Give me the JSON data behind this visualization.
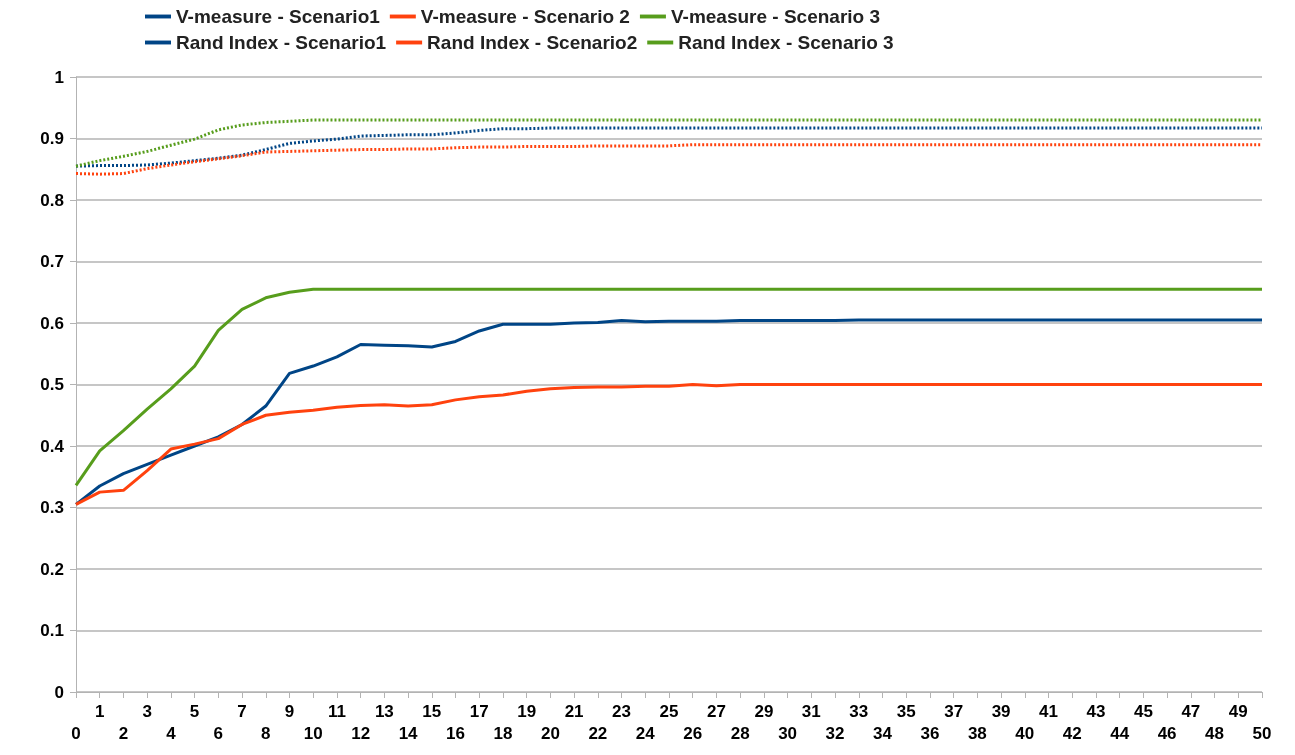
{
  "chart_data": {
    "type": "line",
    "categories": [
      "0",
      "1",
      "2",
      "3",
      "4",
      "5",
      "6",
      "7",
      "8",
      "9",
      "10",
      "11",
      "12",
      "13",
      "14",
      "15",
      "16",
      "17",
      "18",
      "19",
      "20",
      "21",
      "22",
      "23",
      "24",
      "25",
      "26",
      "27",
      "28",
      "29",
      "30",
      "31",
      "32",
      "33",
      "34",
      "35",
      "36",
      "37",
      "38",
      "39",
      "40",
      "41",
      "42",
      "43",
      "44",
      "45",
      "46",
      "47",
      "48",
      "49",
      "50"
    ],
    "ylim": [
      0,
      1
    ],
    "yticks": [
      0,
      0.1,
      0.2,
      0.3,
      0.4,
      0.5,
      0.6,
      0.7,
      0.8,
      0.9,
      1
    ],
    "grid": "y",
    "legend": "top",
    "marker": "none",
    "series": [
      {
        "name": "V-measure - Scenario1",
        "color": "#004586",
        "line_style": "solid",
        "values": [
          0.305,
          0.335,
          0.355,
          0.37,
          0.385,
          0.4,
          0.415,
          0.435,
          0.465,
          0.518,
          0.53,
          0.545,
          0.565,
          0.564,
          0.563,
          0.561,
          0.57,
          0.587,
          0.598,
          0.598,
          0.598,
          0.6,
          0.601,
          0.604,
          0.602,
          0.603,
          0.603,
          0.603,
          0.604,
          0.604,
          0.604,
          0.604,
          0.604,
          0.605,
          0.605,
          0.605,
          0.605,
          0.605,
          0.605,
          0.605,
          0.605,
          0.605,
          0.605,
          0.605,
          0.605,
          0.605,
          0.605,
          0.605,
          0.605,
          0.605,
          0.605
        ]
      },
      {
        "name": "V-measure - Scenario 2",
        "color": "#ff420e",
        "line_style": "solid",
        "values": [
          0.305,
          0.325,
          0.328,
          0.36,
          0.395,
          0.403,
          0.412,
          0.435,
          0.45,
          0.455,
          0.458,
          0.463,
          0.466,
          0.467,
          0.465,
          0.467,
          0.475,
          0.48,
          0.483,
          0.489,
          0.493,
          0.495,
          0.496,
          0.496,
          0.497,
          0.497,
          0.5,
          0.498,
          0.5,
          0.5,
          0.5,
          0.5,
          0.5,
          0.5,
          0.5,
          0.5,
          0.5,
          0.5,
          0.5,
          0.5,
          0.5,
          0.5,
          0.5,
          0.5,
          0.5,
          0.5,
          0.5,
          0.5,
          0.5,
          0.5,
          0.5
        ]
      },
      {
        "name": "V-measure - Scenario 3",
        "color": "#579d1c",
        "line_style": "solid",
        "values": [
          0.336,
          0.392,
          0.425,
          0.46,
          0.493,
          0.53,
          0.588,
          0.622,
          0.641,
          0.65,
          0.655,
          0.655,
          0.655,
          0.655,
          0.655,
          0.655,
          0.655,
          0.655,
          0.655,
          0.655,
          0.655,
          0.655,
          0.655,
          0.655,
          0.655,
          0.655,
          0.655,
          0.655,
          0.655,
          0.655,
          0.655,
          0.655,
          0.655,
          0.655,
          0.655,
          0.655,
          0.655,
          0.655,
          0.655,
          0.655,
          0.655,
          0.655,
          0.655,
          0.655,
          0.655,
          0.655,
          0.655,
          0.655,
          0.655,
          0.655,
          0.655
        ]
      },
      {
        "name": "Rand Index - Scenario1",
        "color": "#004586",
        "line_style": "dotted",
        "values": [
          0.855,
          0.856,
          0.856,
          0.857,
          0.86,
          0.864,
          0.868,
          0.873,
          0.882,
          0.892,
          0.896,
          0.899,
          0.904,
          0.905,
          0.906,
          0.906,
          0.909,
          0.913,
          0.916,
          0.916,
          0.917,
          0.917,
          0.917,
          0.917,
          0.917,
          0.917,
          0.917,
          0.917,
          0.917,
          0.917,
          0.917,
          0.917,
          0.917,
          0.917,
          0.917,
          0.917,
          0.917,
          0.917,
          0.917,
          0.917,
          0.917,
          0.917,
          0.917,
          0.917,
          0.917,
          0.917,
          0.917,
          0.917,
          0.917,
          0.917,
          0.917
        ]
      },
      {
        "name": "Rand Index - Scenario2",
        "color": "#ff420e",
        "line_style": "dotted",
        "values": [
          0.843,
          0.842,
          0.843,
          0.851,
          0.857,
          0.862,
          0.867,
          0.872,
          0.878,
          0.879,
          0.88,
          0.881,
          0.882,
          0.882,
          0.883,
          0.883,
          0.885,
          0.886,
          0.886,
          0.887,
          0.887,
          0.887,
          0.888,
          0.888,
          0.888,
          0.888,
          0.89,
          0.89,
          0.89,
          0.89,
          0.89,
          0.89,
          0.89,
          0.89,
          0.89,
          0.89,
          0.89,
          0.89,
          0.89,
          0.89,
          0.89,
          0.89,
          0.89,
          0.89,
          0.89,
          0.89,
          0.89,
          0.89,
          0.89,
          0.89,
          0.89
        ]
      },
      {
        "name": "Rand Index - Scenario 3",
        "color": "#579d1c",
        "line_style": "dotted",
        "values": [
          0.855,
          0.864,
          0.871,
          0.879,
          0.889,
          0.899,
          0.914,
          0.922,
          0.926,
          0.928,
          0.93,
          0.93,
          0.93,
          0.93,
          0.93,
          0.93,
          0.93,
          0.93,
          0.93,
          0.93,
          0.93,
          0.93,
          0.93,
          0.93,
          0.93,
          0.93,
          0.93,
          0.93,
          0.93,
          0.93,
          0.93,
          0.93,
          0.93,
          0.93,
          0.93,
          0.93,
          0.93,
          0.93,
          0.93,
          0.93,
          0.93,
          0.93,
          0.93,
          0.93,
          0.93,
          0.93,
          0.93,
          0.93,
          0.93,
          0.93,
          0.93
        ]
      }
    ]
  }
}
